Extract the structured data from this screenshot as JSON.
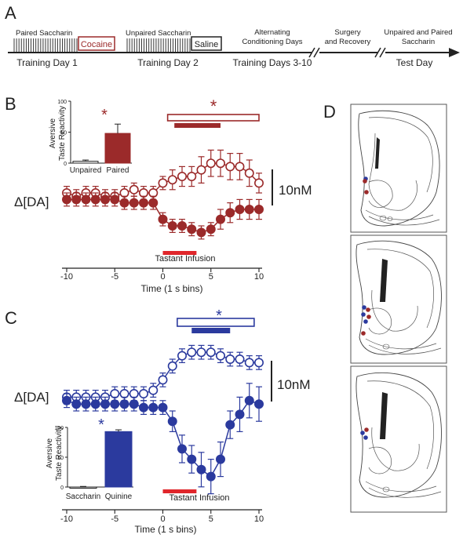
{
  "colors": {
    "panelB": "#9b2a2a",
    "panelC": "#2b3a9e",
    "infusion": "#e0262b",
    "text": "#222222"
  },
  "panelA": {
    "label": "A",
    "stages": [
      {
        "top": "Paired Saccharin",
        "boxed": "Cocaine",
        "bottom": "Training Day 1"
      },
      {
        "top": "Unpaired Saccharin",
        "boxed": "Saline",
        "bottom": "Training Day 2"
      },
      {
        "top1": "Alternating",
        "top2": "Conditioning Days",
        "bottom": "Training Days 3-10"
      },
      {
        "top1": "Surgery",
        "top2": "and Recovery"
      },
      {
        "top1": "Unpaired and Paired",
        "top2": "Saccharin",
        "bottom": "Test Day"
      }
    ]
  },
  "panelB": {
    "label": "B",
    "ylabel": "Δ[DA]",
    "scalebar": "10nM",
    "xlabel": "Time (1 s bins)",
    "infusion_label": "Tastant Infusion",
    "sig_star": "*",
    "inset": {
      "ylabel1": "Aversive",
      "ylabel2": "Taste Reactivity",
      "yticks": [
        "0",
        "50",
        "100"
      ],
      "sig_star": "*"
    }
  },
  "panelC": {
    "label": "C",
    "ylabel": "Δ[DA]",
    "scalebar": "10nM",
    "xlabel": "Time (1 s bins)",
    "infusion_label": "Tastant Infusion",
    "sig_star": "*",
    "inset": {
      "ylabel1": "Aversive",
      "ylabel2": "Taste Reactivity",
      "yticks": [
        "0",
        "50",
        "100"
      ],
      "sig_star": "*"
    }
  },
  "panelD": {
    "label": "D"
  },
  "chart_data": [
    {
      "type": "line",
      "panel": "B",
      "x": [
        -10,
        -9,
        -8,
        -7,
        -6,
        -5,
        -4,
        -3,
        -2,
        -1,
        0,
        1,
        2,
        3,
        4,
        5,
        6,
        7,
        8,
        9,
        10
      ],
      "series": [
        {
          "style": "open",
          "values": [
            0,
            -1,
            0,
            0,
            -1,
            -1,
            0,
            1,
            0,
            0,
            3,
            4,
            5,
            5,
            7,
            9,
            9,
            8,
            8,
            6,
            3
          ],
          "err": [
            2,
            2,
            2,
            2,
            2,
            2,
            2,
            2,
            2,
            2,
            2,
            3,
            3,
            3,
            4,
            4,
            4,
            4,
            4,
            4,
            3
          ]
        },
        {
          "style": "filled",
          "values": [
            -2,
            -2,
            -2,
            -2,
            -2,
            -2,
            -3,
            -3,
            -3,
            -3,
            -8,
            -10,
            -10,
            -11,
            -12,
            -11,
            -8,
            -6,
            -5,
            -5,
            -5
          ],
          "err": [
            2,
            2,
            2,
            2,
            2,
            2,
            2,
            2,
            2,
            2,
            2,
            2,
            2,
            2,
            2,
            2,
            3,
            3,
            3,
            3,
            3
          ]
        }
      ],
      "xticks": [
        -10,
        -5,
        0,
        5,
        10
      ],
      "xlim": [
        -10,
        10
      ],
      "infusion": [
        0,
        3.5
      ],
      "sig_bars": [
        [
          0.5,
          10
        ],
        [
          1.2,
          6
        ]
      ],
      "inset": {
        "type": "bar",
        "categories": [
          "Unpaired",
          "Paired"
        ],
        "values": [
          3,
          48
        ],
        "err": [
          2,
          15
        ],
        "ylim": [
          0,
          100
        ]
      }
    },
    {
      "type": "line",
      "panel": "C",
      "x": [
        -10,
        -9,
        -8,
        -7,
        -6,
        -5,
        -4,
        -3,
        -2,
        -1,
        0,
        1,
        2,
        3,
        4,
        5,
        6,
        7,
        8,
        9,
        10
      ],
      "series": [
        {
          "style": "open",
          "values": [
            -1,
            -1,
            -1,
            -1,
            -1,
            0,
            0,
            0,
            0,
            1,
            4,
            8,
            11,
            12,
            12,
            12,
            11,
            10,
            10,
            9,
            9
          ],
          "err": [
            2,
            2,
            2,
            2,
            2,
            2,
            2,
            2,
            2,
            2,
            2,
            2,
            2,
            2,
            2,
            2,
            2,
            2,
            2,
            2,
            2
          ]
        },
        {
          "style": "filled",
          "values": [
            -2,
            -3,
            -3,
            -3,
            -3,
            -3,
            -3,
            -3,
            -4,
            -4,
            -4,
            -8,
            -16,
            -19,
            -22,
            -24,
            -19,
            -9,
            -6,
            -2,
            -3
          ],
          "err": [
            2,
            2,
            2,
            2,
            2,
            2,
            2,
            2,
            2,
            2,
            2,
            3,
            4,
            4,
            5,
            5,
            5,
            4,
            5,
            5,
            5
          ]
        }
      ],
      "xticks": [
        -10,
        -5,
        0,
        5,
        10
      ],
      "xlim": [
        -10,
        10
      ],
      "infusion": [
        0,
        3.5
      ],
      "sig_bars": [
        [
          1.5,
          9.5
        ],
        [
          3,
          7
        ]
      ],
      "inset": {
        "type": "bar",
        "categories": [
          "Saccharin",
          "Quinine"
        ],
        "values": [
          0,
          93
        ],
        "err": [
          1,
          3
        ],
        "ylim": [
          0,
          100
        ]
      }
    }
  ]
}
